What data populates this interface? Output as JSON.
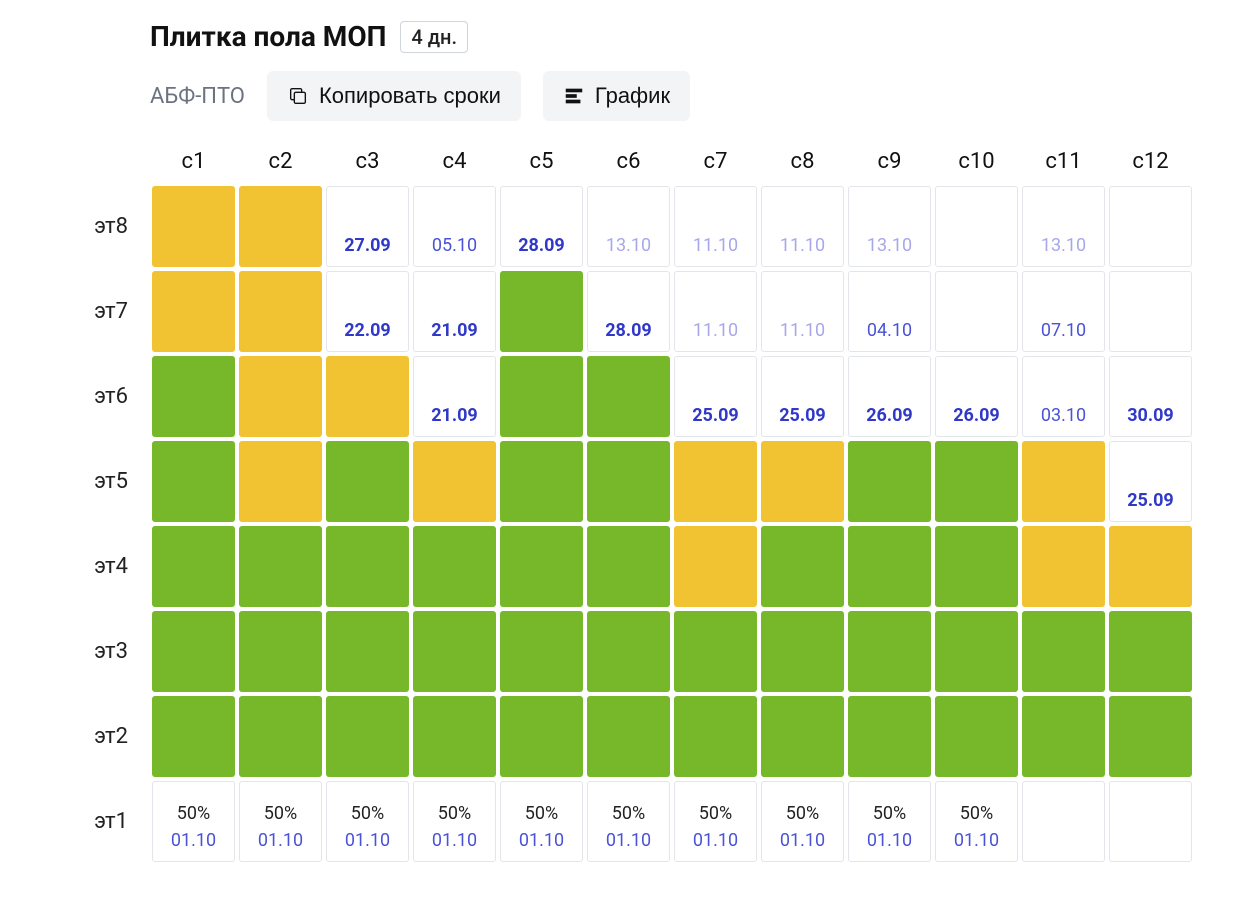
{
  "header": {
    "title": "Плитка пола МОП",
    "duration_badge": "4 дн."
  },
  "toolbar": {
    "subtitle": "АБФ-ПТО",
    "copy_label": "Копировать сроки",
    "chart_label": "График"
  },
  "grid": {
    "colors": {
      "green": "#76b82a",
      "yellow": "#f1c232",
      "white": "#ffffff",
      "date_strong": "#3038c7",
      "date_light": "#a6a8ea",
      "date_normal": "#4a52d6"
    },
    "columns": [
      "с1",
      "с2",
      "с3",
      "с4",
      "с5",
      "с6",
      "с7",
      "с8",
      "с9",
      "с10",
      "с11",
      "с12"
    ],
    "rows": [
      "эт8",
      "эт7",
      "эт6",
      "эт5",
      "эт4",
      "эт3",
      "эт2",
      "эт1"
    ],
    "cells": {
      "эт8": [
        {
          "fill": "yellow"
        },
        {
          "fill": "yellow"
        },
        {
          "fill": "white",
          "date": "27.09",
          "style": "strong"
        },
        {
          "fill": "white",
          "date": "05.10",
          "style": "normal"
        },
        {
          "fill": "white",
          "date": "28.09",
          "style": "strong"
        },
        {
          "fill": "white",
          "date": "13.10",
          "style": "light"
        },
        {
          "fill": "white",
          "date": "11.10",
          "style": "light"
        },
        {
          "fill": "white",
          "date": "11.10",
          "style": "light"
        },
        {
          "fill": "white",
          "date": "13.10",
          "style": "light"
        },
        {
          "fill": "white"
        },
        {
          "fill": "white",
          "date": "13.10",
          "style": "light"
        },
        {
          "fill": "white"
        }
      ],
      "эт7": [
        {
          "fill": "yellow"
        },
        {
          "fill": "yellow"
        },
        {
          "fill": "white",
          "date": "22.09",
          "style": "strong"
        },
        {
          "fill": "white",
          "date": "21.09",
          "style": "strong"
        },
        {
          "fill": "green"
        },
        {
          "fill": "white",
          "date": "28.09",
          "style": "strong"
        },
        {
          "fill": "white",
          "date": "11.10",
          "style": "light"
        },
        {
          "fill": "white",
          "date": "11.10",
          "style": "light"
        },
        {
          "fill": "white",
          "date": "04.10",
          "style": "normal"
        },
        {
          "fill": "white"
        },
        {
          "fill": "white",
          "date": "07.10",
          "style": "normal"
        },
        {
          "fill": "white"
        }
      ],
      "эт6": [
        {
          "fill": "green"
        },
        {
          "fill": "yellow"
        },
        {
          "fill": "yellow"
        },
        {
          "fill": "white",
          "date": "21.09",
          "style": "strong"
        },
        {
          "fill": "green"
        },
        {
          "fill": "green"
        },
        {
          "fill": "white",
          "date": "25.09",
          "style": "strong"
        },
        {
          "fill": "white",
          "date": "25.09",
          "style": "strong"
        },
        {
          "fill": "white",
          "date": "26.09",
          "style": "strong"
        },
        {
          "fill": "white",
          "date": "26.09",
          "style": "strong"
        },
        {
          "fill": "white",
          "date": "03.10",
          "style": "normal"
        },
        {
          "fill": "white",
          "date": "30.09",
          "style": "strong"
        }
      ],
      "эт5": [
        {
          "fill": "green"
        },
        {
          "fill": "yellow"
        },
        {
          "fill": "green"
        },
        {
          "fill": "yellow"
        },
        {
          "fill": "green"
        },
        {
          "fill": "green"
        },
        {
          "fill": "yellow"
        },
        {
          "fill": "yellow"
        },
        {
          "fill": "green"
        },
        {
          "fill": "green"
        },
        {
          "fill": "yellow"
        },
        {
          "fill": "white",
          "date": "25.09",
          "style": "strong"
        }
      ],
      "эт4": [
        {
          "fill": "green"
        },
        {
          "fill": "green"
        },
        {
          "fill": "green"
        },
        {
          "fill": "green"
        },
        {
          "fill": "green"
        },
        {
          "fill": "green"
        },
        {
          "fill": "yellow"
        },
        {
          "fill": "green"
        },
        {
          "fill": "green"
        },
        {
          "fill": "green"
        },
        {
          "fill": "yellow"
        },
        {
          "fill": "yellow"
        }
      ],
      "эт3": [
        {
          "fill": "green"
        },
        {
          "fill": "green"
        },
        {
          "fill": "green"
        },
        {
          "fill": "green"
        },
        {
          "fill": "green"
        },
        {
          "fill": "green"
        },
        {
          "fill": "green"
        },
        {
          "fill": "green"
        },
        {
          "fill": "green"
        },
        {
          "fill": "green"
        },
        {
          "fill": "green"
        },
        {
          "fill": "green"
        }
      ],
      "эт2": [
        {
          "fill": "green"
        },
        {
          "fill": "green"
        },
        {
          "fill": "green"
        },
        {
          "fill": "green"
        },
        {
          "fill": "green"
        },
        {
          "fill": "green"
        },
        {
          "fill": "green"
        },
        {
          "fill": "green"
        },
        {
          "fill": "green"
        },
        {
          "fill": "green"
        },
        {
          "fill": "green"
        },
        {
          "fill": "green"
        }
      ],
      "эт1": [
        {
          "fill": "white",
          "pct": "50%",
          "date": "01.10",
          "style": "normal"
        },
        {
          "fill": "white",
          "pct": "50%",
          "date": "01.10",
          "style": "normal"
        },
        {
          "fill": "white",
          "pct": "50%",
          "date": "01.10",
          "style": "normal"
        },
        {
          "fill": "white",
          "pct": "50%",
          "date": "01.10",
          "style": "normal"
        },
        {
          "fill": "white",
          "pct": "50%",
          "date": "01.10",
          "style": "normal"
        },
        {
          "fill": "white",
          "pct": "50%",
          "date": "01.10",
          "style": "normal"
        },
        {
          "fill": "white",
          "pct": "50%",
          "date": "01.10",
          "style": "normal"
        },
        {
          "fill": "white",
          "pct": "50%",
          "date": "01.10",
          "style": "normal"
        },
        {
          "fill": "white",
          "pct": "50%",
          "date": "01.10",
          "style": "normal"
        },
        {
          "fill": "white",
          "pct": "50%",
          "date": "01.10",
          "style": "normal"
        },
        {
          "fill": "white"
        },
        {
          "fill": "white"
        }
      ]
    }
  }
}
